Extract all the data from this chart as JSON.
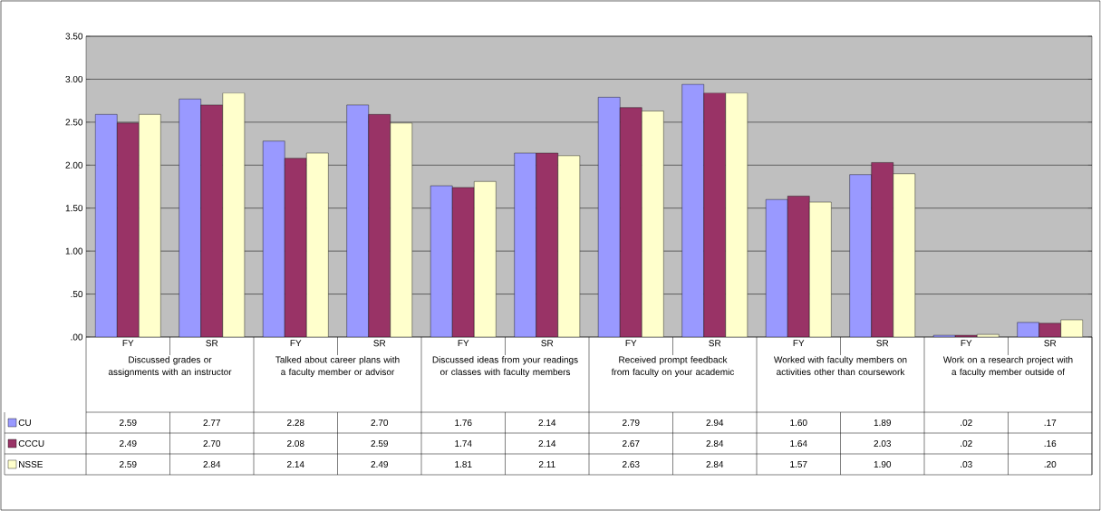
{
  "chart_data": {
    "type": "bar",
    "categories": [
      "FY",
      "SR",
      "FY",
      "SR",
      "FY",
      "SR",
      "FY",
      "SR",
      "FY",
      "SR",
      "FY",
      "SR"
    ],
    "annotations": [
      "Discussed grades or assignments with an instructor",
      "Talked about career plans with a faculty member or advisor",
      "Discussed ideas from your readings or classes with faculty members",
      "Received prompt feedback from faculty on your academic",
      "Worked with faculty members on activities other than coursework",
      "Work on a research project with a faculty member outside of"
    ],
    "series": [
      {
        "name": "CU",
        "color": "#9999ff",
        "values": [
          2.59,
          2.77,
          2.28,
          2.7,
          1.76,
          2.14,
          2.79,
          2.94,
          1.6,
          1.89,
          0.02,
          0.17
        ],
        "value_labels": [
          "2.59",
          "2.77",
          "2.28",
          "2.70",
          "1.76",
          "2.14",
          "2.79",
          "2.94",
          "1.60",
          "1.89",
          ".02",
          ".17"
        ]
      },
      {
        "name": "CCCU",
        "color": "#993366",
        "values": [
          2.49,
          2.7,
          2.08,
          2.59,
          1.74,
          2.14,
          2.67,
          2.84,
          1.64,
          2.03,
          0.02,
          0.16
        ],
        "value_labels": [
          "2.49",
          "2.70",
          "2.08",
          "2.59",
          "1.74",
          "2.14",
          "2.67",
          "2.84",
          "1.64",
          "2.03",
          ".02",
          ".16"
        ]
      },
      {
        "name": "NSSE",
        "color": "#ffffcc",
        "values": [
          2.59,
          2.84,
          2.14,
          2.49,
          1.81,
          2.11,
          2.63,
          2.84,
          1.57,
          1.9,
          0.03,
          0.2
        ],
        "value_labels": [
          "2.59",
          "2.84",
          "2.14",
          "2.49",
          "1.81",
          "2.11",
          "2.63",
          "2.84",
          "1.57",
          "1.90",
          ".03",
          ".20"
        ]
      }
    ],
    "ylim": [
      0,
      3.5
    ],
    "yticks": [
      {
        "value": 0,
        "label": ".00"
      },
      {
        "value": 0.5,
        "label": ".50"
      },
      {
        "value": 1,
        "label": "1.00"
      },
      {
        "value": 1.5,
        "label": "1.50"
      },
      {
        "value": 2,
        "label": "2.00"
      },
      {
        "value": 2.5,
        "label": "2.50"
      },
      {
        "value": 3,
        "label": "3.00"
      },
      {
        "value": 3.5,
        "label": "3.50"
      }
    ],
    "grid": "y",
    "legend": "bottom"
  }
}
